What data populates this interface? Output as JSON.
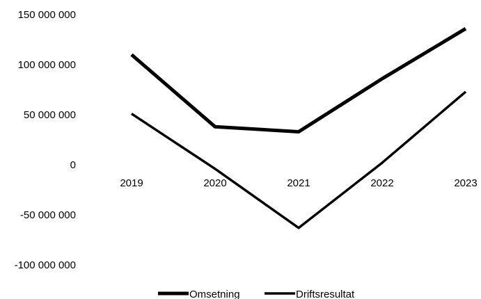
{
  "chart_data": {
    "type": "line",
    "categories": [
      "2019",
      "2020",
      "2021",
      "2022",
      "2023"
    ],
    "series": [
      {
        "name": "Omsetning",
        "values": [
          110000000,
          38000000,
          33000000,
          86000000,
          136000000
        ],
        "color": "#000000"
      },
      {
        "name": "Driftsresultat",
        "values": [
          51000000,
          -4000000,
          -63000000,
          2000000,
          73000000
        ],
        "color": "#000000"
      }
    ],
    "yticks": [
      {
        "value": 150000000,
        "label": "150 000 000"
      },
      {
        "value": 100000000,
        "label": "100 000 000"
      },
      {
        "value": 50000000,
        "label": "50 000 000"
      },
      {
        "value": 0,
        "label": "0"
      },
      {
        "value": -50000000,
        "label": "-50 000 000"
      },
      {
        "value": -100000000,
        "label": "-100 000 000"
      }
    ],
    "ylim": [
      -100000000,
      150000000
    ],
    "grid": false,
    "legend_position": "bottom",
    "title": "",
    "xlabel": "",
    "ylabel": ""
  }
}
